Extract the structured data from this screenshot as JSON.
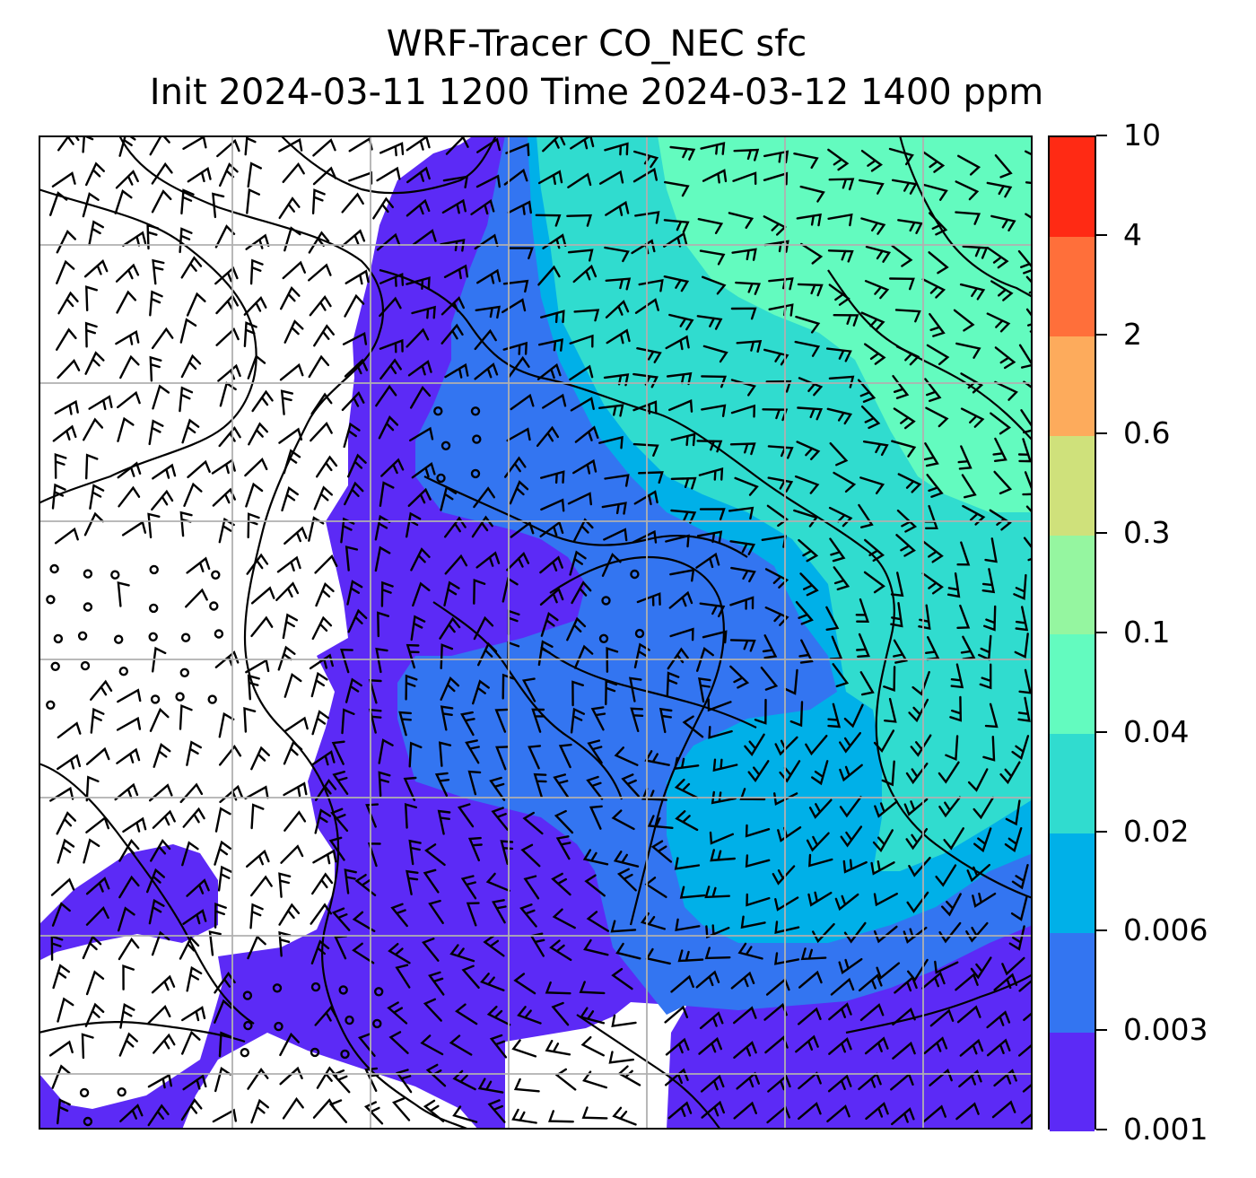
{
  "title": {
    "line1": "WRF-Tracer CO_NEC sfc",
    "line2": "Init 2024-03-11 1200 Time 2024-03-12 1400 ppm"
  },
  "map": {
    "field": "CO_NEC tracer concentration (filled contours) with wind barbs, coastlines and lat/lon gridlines",
    "below_lowest_level_color": "#ffffff"
  },
  "colorbar": {
    "levels": [
      "0.001",
      "0.003",
      "0.006",
      "0.02",
      "0.04",
      "0.1",
      "0.3",
      "0.6",
      "2",
      "4",
      "10"
    ],
    "colors": [
      "#5c2af6",
      "#3375f1",
      "#00b0e8",
      "#30dccf",
      "#63fbbf",
      "#95f6a0",
      "#cfe17b",
      "#fdab5c",
      "#ff6f3a",
      "#ff2a14"
    ]
  }
}
